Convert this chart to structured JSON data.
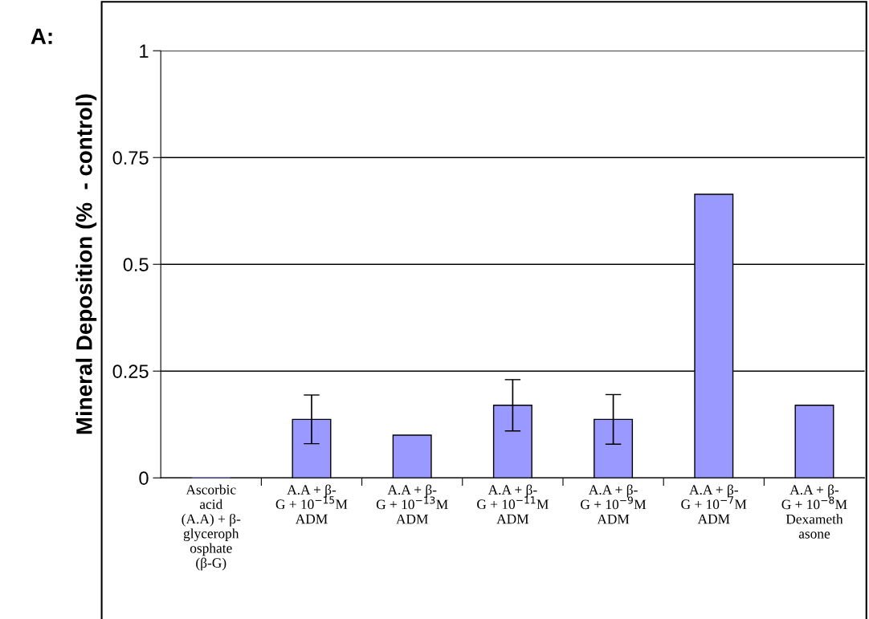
{
  "chart_data": {
    "type": "bar",
    "ylabel": "Mineral Deposition (%  - control)",
    "categories": [
      "Ascorbic\nacid\n(A.A) + β-\nglyceroph\nosphate\n(β-G)",
      "A.A + β-\nG + 10$^{−15}$M\nADM",
      "A.A + β-\nG + 10$^{−13}$M\nADM",
      "A.A + β-\nG + 10$^{−11}$M\nADM",
      "A.A + β-\nG + 10$^{−9}$M\nADM",
      "A.A + β-\nG + 10$^{−7}$M\nADM",
      "A.A + β-\nG + 10$^{−8}$M\nDexameth\nasone"
    ],
    "values": [
      0,
      0.137,
      0.1,
      0.17,
      0.137,
      0.664,
      0.17
    ],
    "errors": [
      null,
      0.057,
      null,
      0.06,
      0.058,
      null,
      null
    ],
    "color": "#9999ff",
    "ylim": [
      0,
      1
    ],
    "yticks": [
      0,
      0.25,
      0.5,
      0.75,
      1
    ],
    "grid": "y",
    "annotations": [
      "A:"
    ]
  }
}
